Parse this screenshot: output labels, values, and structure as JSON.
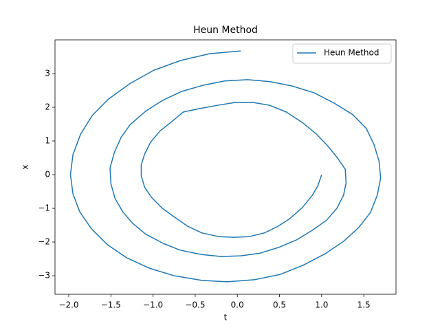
{
  "chart_data": {
    "type": "line",
    "title": "Heun Method",
    "xlabel": "t",
    "ylabel": "x",
    "legend": "upper right",
    "xlim": [
      -2.163,
      1.882
    ],
    "ylim": [
      -3.55,
      4.0
    ],
    "xticks": [
      {
        "value": -2,
        "label": "−2.0"
      },
      {
        "value": -1.5,
        "label": "−1.5"
      },
      {
        "value": -1,
        "label": "−1.0"
      },
      {
        "value": -0.5,
        "label": "−0.5"
      },
      {
        "value": 0,
        "label": "0.0"
      },
      0.5,
      {
        "value": 1,
        "label": "1.0"
      },
      1.5
    ],
    "yticks": [
      {
        "value": -3,
        "label": "−3"
      },
      {
        "value": -2,
        "label": "−2"
      },
      {
        "value": -1,
        "label": "−1"
      },
      0,
      1,
      2,
      3
    ],
    "series": [
      {
        "name": "Heun Method",
        "color": "#1f77b4",
        "x": [
          1.0,
          0.955,
          0.89,
          0.77,
          0.62,
          0.47,
          0.32,
          0.14,
          -0.04,
          -0.22,
          -0.42,
          -0.59,
          -0.74,
          -0.89,
          -1.02,
          -1.1,
          -1.14,
          -1.14,
          -1.1,
          -1.03,
          -0.92,
          -0.78,
          -0.64,
          -0.45,
          -0.23,
          -0.03,
          0.19,
          0.38,
          0.58,
          0.77,
          0.94,
          1.07,
          1.19,
          1.28,
          1.29,
          1.26,
          1.18,
          1.06,
          0.89,
          0.7,
          0.49,
          0.27,
          0.04,
          -0.19,
          -0.43,
          -0.68,
          -0.88,
          -1.09,
          -1.24,
          -1.36,
          -1.45,
          -1.5,
          -1.51,
          -1.46,
          -1.38,
          -1.27,
          -1.09,
          -0.89,
          -0.66,
          -0.41,
          -0.15,
          0.12,
          0.39,
          0.65,
          0.91,
          1.15,
          1.37,
          1.53,
          1.62,
          1.68,
          1.7,
          1.66,
          1.58,
          1.44,
          1.26,
          1.04,
          0.78,
          0.51,
          0.2,
          -0.12,
          -0.42,
          -0.75,
          -1.04,
          -1.31,
          -1.54,
          -1.73,
          -1.87,
          -1.95,
          -1.98,
          -1.95,
          -1.86,
          -1.72,
          -1.53,
          -1.27,
          -0.99,
          -0.67,
          -0.33,
          0.04
        ],
        "values": [
          0.0,
          -0.33,
          -0.61,
          -0.98,
          -1.31,
          -1.55,
          -1.73,
          -1.84,
          -1.86,
          -1.84,
          -1.73,
          -1.53,
          -1.27,
          -1.0,
          -0.67,
          -0.37,
          -0.04,
          0.29,
          0.61,
          0.96,
          1.29,
          1.57,
          1.86,
          1.96,
          2.06,
          2.14,
          2.14,
          2.06,
          1.86,
          1.55,
          1.2,
          0.86,
          0.49,
          0.16,
          -0.24,
          -0.61,
          -1.0,
          -1.35,
          -1.65,
          -1.94,
          -2.16,
          -2.33,
          -2.41,
          -2.43,
          -2.37,
          -2.24,
          -2.04,
          -1.76,
          -1.45,
          -1.1,
          -0.71,
          -0.27,
          0.2,
          0.65,
          1.1,
          1.49,
          1.88,
          2.2,
          2.47,
          2.65,
          2.78,
          2.82,
          2.76,
          2.63,
          2.43,
          2.12,
          1.78,
          1.37,
          0.9,
          0.41,
          -0.1,
          -0.61,
          -1.12,
          -1.57,
          -1.98,
          -2.35,
          -2.69,
          -2.96,
          -3.12,
          -3.18,
          -3.14,
          -3.0,
          -2.78,
          -2.47,
          -2.08,
          -1.61,
          -1.1,
          -0.57,
          0.0,
          0.59,
          1.2,
          1.76,
          2.24,
          2.71,
          3.1,
          3.39,
          3.59,
          3.67
        ]
      }
    ]
  }
}
